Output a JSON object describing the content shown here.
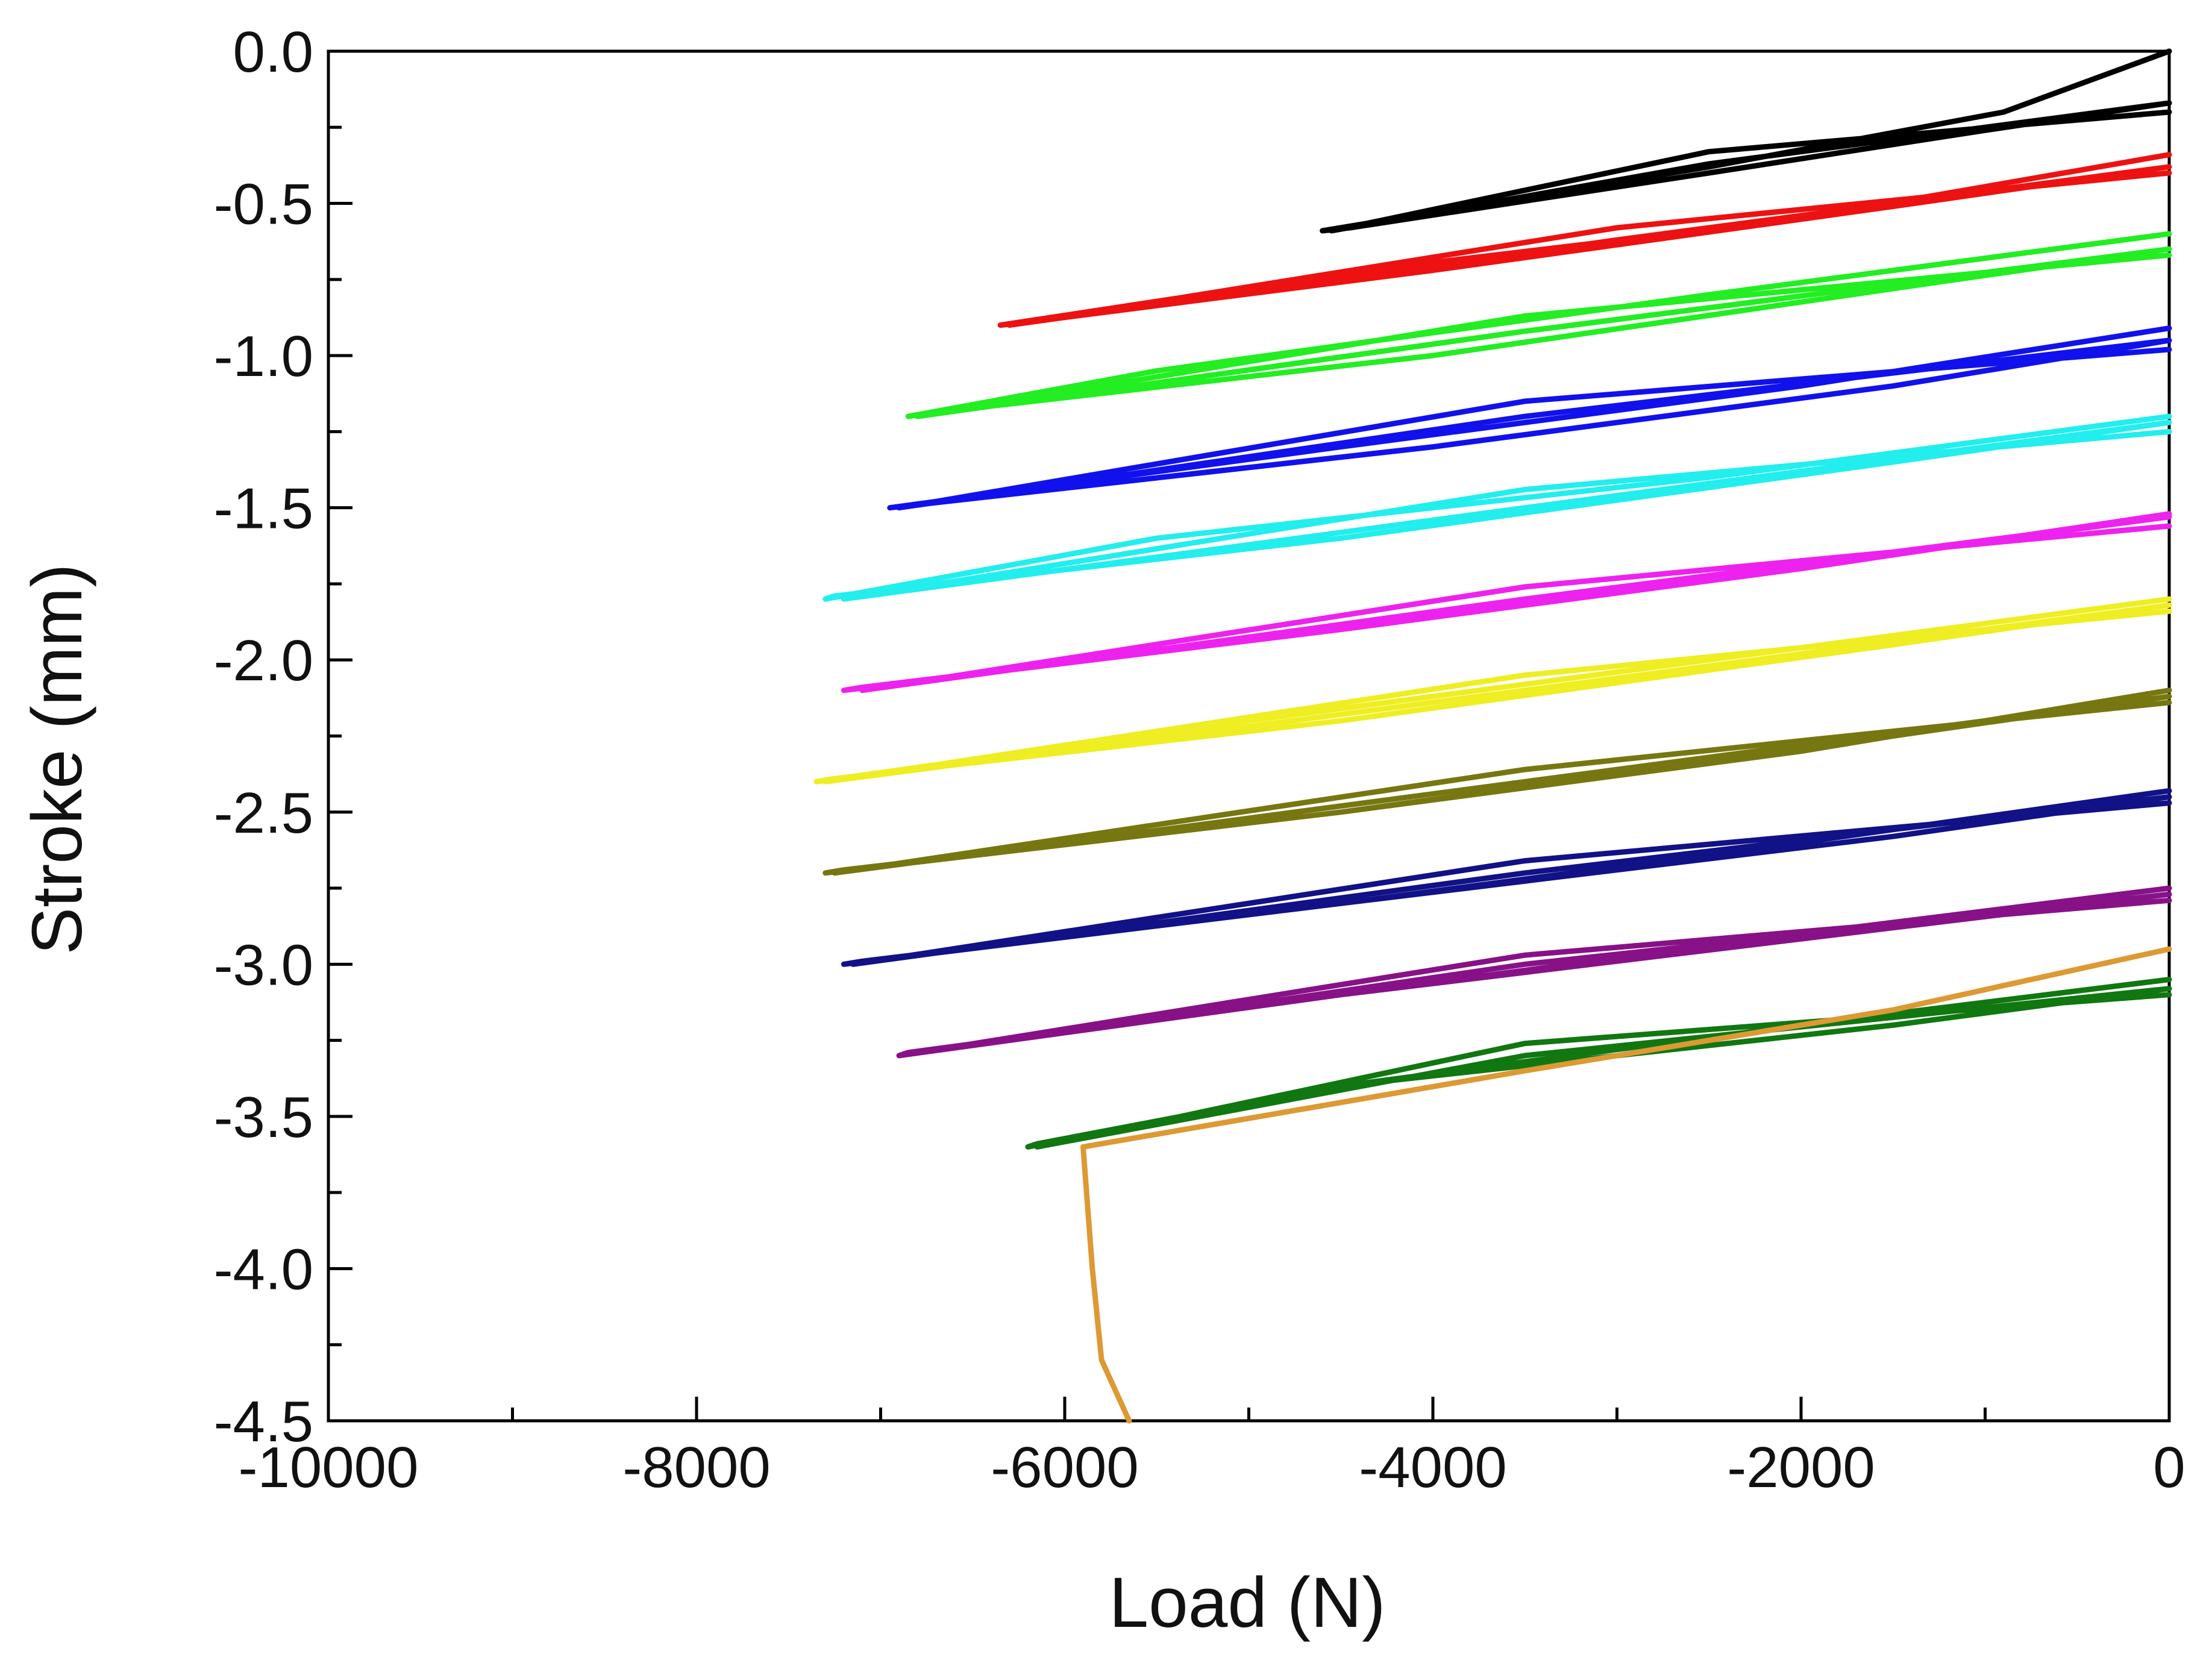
{
  "chart_data": {
    "type": "line",
    "title": "",
    "xlabel": "Load (N)",
    "ylabel": "Stroke (mm)",
    "xlim": [
      -10000,
      0
    ],
    "ylim": [
      -4.5,
      0.0
    ],
    "x_ticks": [
      -10000,
      -8000,
      -6000,
      -4000,
      -2000,
      0
    ],
    "x_tick_labels": [
      "-10000",
      "-8000",
      "-6000",
      "-4000",
      "-2000",
      "0"
    ],
    "y_ticks": [
      0.0,
      -0.5,
      -1.0,
      -1.5,
      -2.0,
      -2.5,
      -3.0,
      -3.5,
      -4.0,
      -4.5
    ],
    "y_tick_labels": [
      "0.0",
      "-0.5",
      "-1.0",
      "-1.5",
      "-2.0",
      "-2.5",
      "-3.0",
      "-3.5",
      "-4.0",
      "-4.5"
    ],
    "grid": false,
    "legend": "none",
    "series": [
      {
        "name": "cycle-1",
        "color": "#000000",
        "x": [
          0,
          -900,
          -2500,
          -4600,
          -4450,
          -2500,
          -1000,
          0,
          -2500,
          -4550,
          -2500,
          0
        ],
        "y": [
          0.0,
          -0.2,
          -0.38,
          -0.59,
          -0.58,
          -0.4,
          -0.26,
          -0.17,
          -0.37,
          -0.59,
          -0.33,
          -0.2
        ]
      },
      {
        "name": "cycle-2",
        "color": "#ee1111",
        "x": [
          0,
          -2000,
          -4500,
          -6350,
          -6200,
          -4000,
          -1500,
          0,
          -3000,
          -6300,
          -3000,
          0
        ],
        "y": [
          -0.34,
          -0.55,
          -0.73,
          -0.9,
          -0.89,
          -0.72,
          -0.51,
          -0.38,
          -0.62,
          -0.9,
          -0.58,
          -0.4
        ]
      },
      {
        "name": "cycle-3",
        "color": "#22ee22",
        "x": [
          0,
          -2500,
          -5500,
          -6850,
          -6750,
          -4000,
          -1500,
          0,
          -3500,
          -6800,
          -3500,
          0
        ],
        "y": [
          -0.6,
          -0.8,
          -1.05,
          -1.2,
          -1.19,
          -1.0,
          -0.78,
          -0.65,
          -0.92,
          -1.2,
          -0.87,
          -0.67
        ]
      },
      {
        "name": "cycle-4",
        "color": "#1111ee",
        "x": [
          0,
          -2000,
          -4500,
          -6950,
          -6800,
          -4000,
          -1500,
          0,
          -3500,
          -6900,
          -3500,
          0
        ],
        "y": [
          -0.91,
          -1.1,
          -1.3,
          -1.5,
          -1.49,
          -1.3,
          -1.1,
          -0.95,
          -1.2,
          -1.5,
          -1.15,
          -0.98
        ]
      },
      {
        "name": "cycle-5",
        "color": "#22eeee",
        "x": [
          0,
          -2500,
          -5500,
          -7300,
          -7250,
          -4500,
          -1500,
          0,
          -3500,
          -7200,
          -3500,
          0
        ],
        "y": [
          -1.2,
          -1.4,
          -1.6,
          -1.8,
          -1.79,
          -1.6,
          -1.35,
          -1.22,
          -1.5,
          -1.8,
          -1.44,
          -1.25
        ]
      },
      {
        "name": "cycle-6",
        "color": "#ee22ee",
        "x": [
          0,
          -2000,
          -4500,
          -7200,
          -7100,
          -4500,
          -1500,
          0,
          -3500,
          -7100,
          -3500,
          0
        ],
        "y": [
          -1.52,
          -1.7,
          -1.9,
          -2.1,
          -2.09,
          -1.9,
          -1.65,
          -1.53,
          -1.8,
          -2.1,
          -1.76,
          -1.56
        ]
      },
      {
        "name": "cycle-7",
        "color": "#eeee22",
        "x": [
          0,
          -2500,
          -5000,
          -7350,
          -7250,
          -4500,
          -1500,
          0,
          -3500,
          -7300,
          -3500,
          0
        ],
        "y": [
          -1.8,
          -2.0,
          -2.2,
          -2.4,
          -2.39,
          -2.2,
          -1.95,
          -1.82,
          -2.1,
          -2.4,
          -2.05,
          -1.84
        ]
      },
      {
        "name": "cycle-8",
        "color": "#777711",
        "x": [
          0,
          -2000,
          -4500,
          -7300,
          -7200,
          -4500,
          -1500,
          0,
          -3500,
          -7250,
          -3500,
          0
        ],
        "y": [
          -2.1,
          -2.3,
          -2.5,
          -2.7,
          -2.69,
          -2.5,
          -2.25,
          -2.12,
          -2.4,
          -2.7,
          -2.36,
          -2.14
        ]
      },
      {
        "name": "cycle-9",
        "color": "#111188",
        "x": [
          0,
          -2000,
          -4500,
          -7200,
          -7100,
          -4500,
          -1500,
          0,
          -3500,
          -7150,
          -3500,
          0
        ],
        "y": [
          -2.43,
          -2.6,
          -2.8,
          -3.0,
          -2.99,
          -2.8,
          -2.58,
          -2.45,
          -2.7,
          -3.0,
          -2.66,
          -2.47
        ]
      },
      {
        "name": "cycle-10",
        "color": "#881188",
        "x": [
          0,
          -2000,
          -4500,
          -6900,
          -6850,
          -4500,
          -1500,
          0,
          -3500,
          -6900,
          -3500,
          0
        ],
        "y": [
          -2.75,
          -2.9,
          -3.1,
          -3.3,
          -3.29,
          -3.1,
          -2.88,
          -2.77,
          -3.0,
          -3.3,
          -2.97,
          -2.79
        ]
      },
      {
        "name": "cycle-11",
        "color": "#117711",
        "x": [
          0,
          -2000,
          -4500,
          -6200,
          -6150,
          -4500,
          -1500,
          0,
          -3500,
          -6150,
          -3500,
          0
        ],
        "y": [
          -3.05,
          -3.2,
          -3.4,
          -3.6,
          -3.59,
          -3.4,
          -3.2,
          -3.08,
          -3.3,
          -3.6,
          -3.26,
          -3.1
        ]
      },
      {
        "name": "final",
        "color": "#dd9933",
        "x": [
          0,
          -1500,
          -3500,
          -5900,
          -5850,
          -5800,
          -5650
        ],
        "y": [
          -2.95,
          -3.15,
          -3.35,
          -3.6,
          -4.0,
          -4.3,
          -4.5
        ]
      }
    ]
  }
}
